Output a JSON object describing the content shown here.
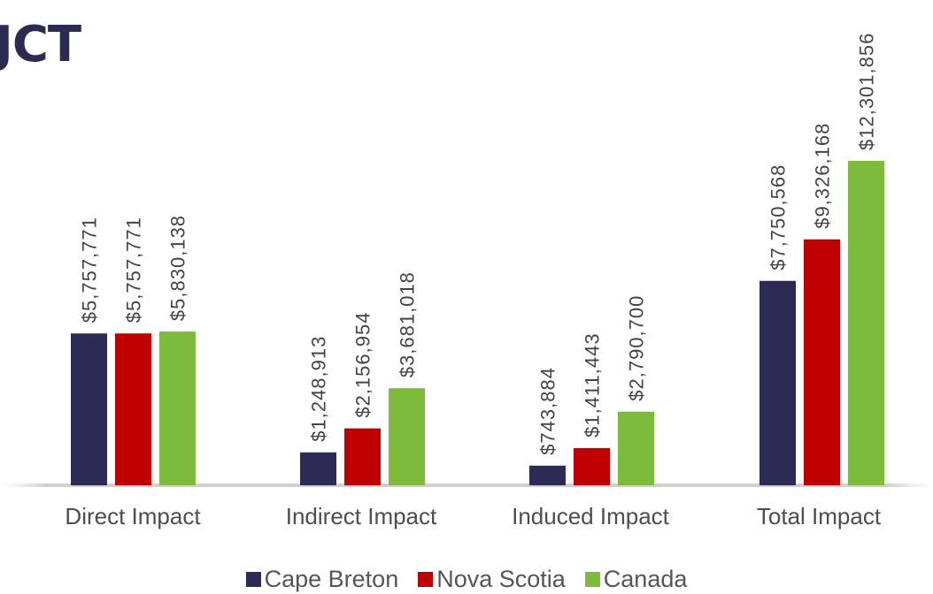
{
  "header": {
    "title": "JCT"
  },
  "chart_data": {
    "type": "bar",
    "title": "",
    "xlabel": "",
    "ylabel": "",
    "ylim": [
      0,
      13000000
    ],
    "grid": false,
    "legend_position": "bottom",
    "categories": [
      "Direct Impact",
      "Indirect Impact",
      "Induced Impact",
      "Total Impact"
    ],
    "series": [
      {
        "name": "Cape Breton",
        "color": "#2d2a56",
        "values": [
          5757771,
          1248913,
          743884,
          7750568
        ],
        "labels": [
          "$5,757,771",
          "$1,248,913",
          "$743,884",
          "$7,750,568"
        ]
      },
      {
        "name": "Nova Scotia",
        "color": "#c00000",
        "values": [
          5757771,
          2156954,
          1411443,
          9326168
        ],
        "labels": [
          "$5,757,771",
          "$2,156,954",
          "$1,411,443",
          "$9,326,168"
        ]
      },
      {
        "name": "Canada",
        "color": "#7dbb3c",
        "values": [
          5830138,
          3681018,
          2790700,
          12301856
        ],
        "labels": [
          "$5,830,138",
          "$3,681,018",
          "$2,790,700",
          "$12,301,856"
        ]
      }
    ]
  }
}
